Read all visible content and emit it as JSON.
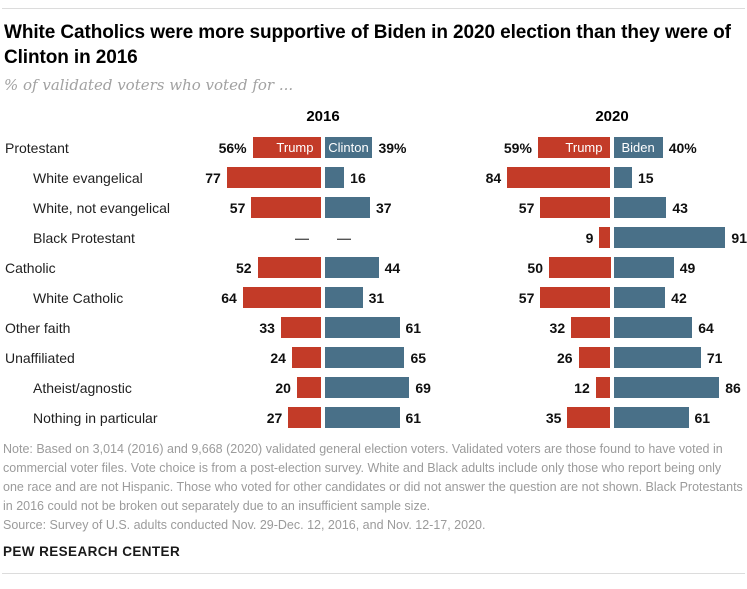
{
  "header": {
    "title": "White Catholics were more supportive of Biden in 2020 election than they were of Clinton in 2016",
    "subtitle": "% of validated voters who voted for ..."
  },
  "chart_data": {
    "type": "bar",
    "variant": "paired diverging horizontal bars (two panels)",
    "unit": "% of validated voters",
    "panels": [
      {
        "year": "2016",
        "left_label": "Trump",
        "right_label": "Clinton"
      },
      {
        "year": "2020",
        "left_label": "Trump",
        "right_label": "Biden"
      }
    ],
    "no_data_symbol": "—",
    "colors": {
      "left_bar": "#c33b28",
      "right_bar": "#497088"
    },
    "rows": [
      {
        "label": "Protestant",
        "indent": false,
        "suffix": "%",
        "v2016": [
          56,
          39
        ],
        "v2020": [
          59,
          40
        ]
      },
      {
        "label": "White evangelical",
        "indent": true,
        "v2016": [
          77,
          16
        ],
        "v2020": [
          84,
          15
        ]
      },
      {
        "label": "White, not evangelical",
        "indent": true,
        "v2016": [
          57,
          37
        ],
        "v2020": [
          57,
          43
        ]
      },
      {
        "label": "Black Protestant",
        "indent": true,
        "v2016": null,
        "v2020": [
          9,
          91
        ]
      },
      {
        "label": "Catholic",
        "indent": false,
        "v2016": [
          52,
          44
        ],
        "v2020": [
          50,
          49
        ]
      },
      {
        "label": "White Catholic",
        "indent": true,
        "v2016": [
          64,
          31
        ],
        "v2020": [
          57,
          42
        ]
      },
      {
        "label": "Other faith",
        "indent": false,
        "v2016": [
          33,
          61
        ],
        "v2020": [
          32,
          64
        ]
      },
      {
        "label": "Unaffiliated",
        "indent": false,
        "v2016": [
          24,
          65
        ],
        "v2020": [
          26,
          71
        ]
      },
      {
        "label": "Atheist/agnostic",
        "indent": true,
        "v2016": [
          20,
          69
        ],
        "v2020": [
          12,
          86
        ]
      },
      {
        "label": "Nothing in particular",
        "indent": true,
        "v2016": [
          27,
          61
        ],
        "v2020": [
          35,
          61
        ]
      }
    ]
  },
  "notes": {
    "note": "Note: Based on 3,014 (2016) and 9,668 (2020) validated general election voters. Validated voters are those found to have voted in commercial voter files. Vote choice is from a post-election survey. White and Black adults include only those who report being only one race and are not Hispanic. Those who voted for other candidates or did not answer the question are not shown. Black Protestants in 2016 could not be broken out separately due to an insufficient sample size.",
    "source": "Source: Survey of U.S. adults conducted Nov. 29-Dec. 12, 2016, and Nov. 12-17, 2020."
  },
  "footer": {
    "brand": "PEW RESEARCH CENTER"
  }
}
